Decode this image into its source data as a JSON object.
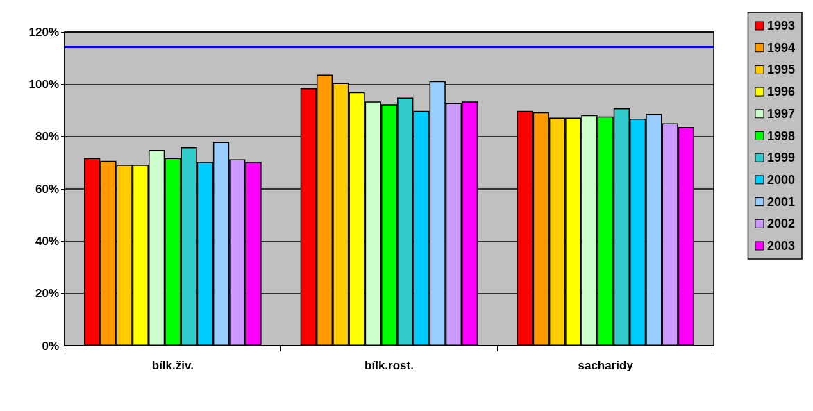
{
  "chart_data": {
    "type": "bar",
    "categories": [
      "bílk.živ.",
      "bílk.rost.",
      "sacharidy"
    ],
    "series": [
      {
        "name": "1993",
        "color": "#ff0000",
        "values": [
          71.8,
          98.5,
          89.8
        ]
      },
      {
        "name": "1994",
        "color": "#ff9900",
        "values": [
          70.7,
          103.7,
          89.3
        ]
      },
      {
        "name": "1995",
        "color": "#ffcc00",
        "values": [
          69.2,
          100.5,
          87.2
        ]
      },
      {
        "name": "1996",
        "color": "#ffff00",
        "values": [
          69.2,
          97.0,
          87.2
        ]
      },
      {
        "name": "1997",
        "color": "#ccffcc",
        "values": [
          74.9,
          93.4,
          88.2
        ]
      },
      {
        "name": "1998",
        "color": "#00ff00",
        "values": [
          71.8,
          92.3,
          87.7
        ]
      },
      {
        "name": "1999",
        "color": "#33cccc",
        "values": [
          75.9,
          94.9,
          90.8
        ]
      },
      {
        "name": "2000",
        "color": "#00ccff",
        "values": [
          70.3,
          89.8,
          86.8
        ]
      },
      {
        "name": "2001",
        "color": "#99ccff",
        "values": [
          77.9,
          101.2,
          88.7
        ]
      },
      {
        "name": "2002",
        "color": "#cc99ff",
        "values": [
          71.3,
          92.8,
          85.1
        ]
      },
      {
        "name": "2003",
        "color": "#ff00ff",
        "values": [
          70.3,
          93.4,
          83.6
        ]
      }
    ],
    "ylim": [
      0,
      120
    ],
    "yticks": [
      {
        "value": 0,
        "label": "0%"
      },
      {
        "value": 20,
        "label": "20%"
      },
      {
        "value": 40,
        "label": "40%"
      },
      {
        "value": 60,
        "label": "60%"
      },
      {
        "value": 80,
        "label": "80%"
      },
      {
        "value": 100,
        "label": "100%"
      },
      {
        "value": 120,
        "label": "120%"
      }
    ],
    "ref_lines": [
      {
        "axis": "y",
        "value": 114.3,
        "color": "#0000ff"
      }
    ],
    "grid": "y",
    "legend": "right"
  }
}
